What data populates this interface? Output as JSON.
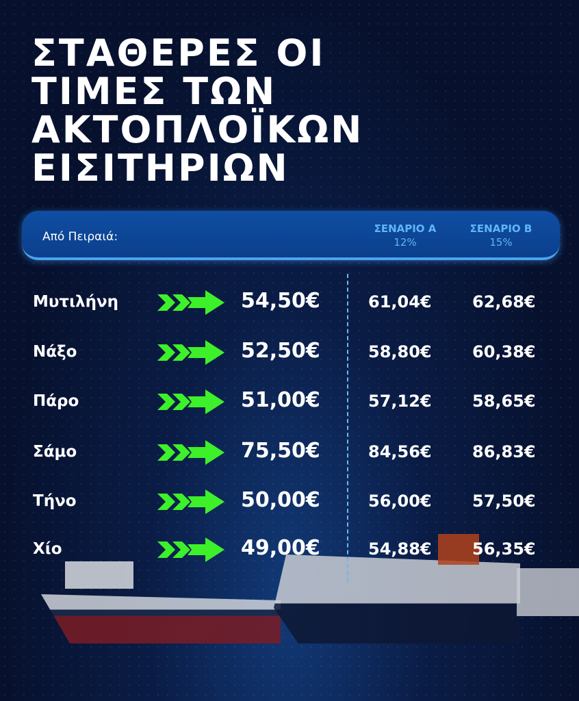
{
  "title": {
    "lines": [
      "ΣΤΑΘΕΡΕΣ ΟΙ",
      "ΤΙΜΕΣ ΤΩΝ",
      "ΑΚΤΟΠΛΟΪΚΩΝ",
      "ΕΙΣΙΤΗΡΙΩΝ"
    ]
  },
  "header": {
    "from_label": "Από Πειραιά:",
    "scenario_a": {
      "label": "ΣΕΝΑΡΙΟ Α",
      "percent": "12%"
    },
    "scenario_b": {
      "label": "ΣΕΝΑΡΙΟ Β",
      "percent": "15%"
    }
  },
  "rows": [
    {
      "destination": "Μυτιλήνη",
      "current": "54,50€",
      "a": "61,04€",
      "b": "62,68€"
    },
    {
      "destination": "Νάξο",
      "current": "52,50€",
      "a": "58,80€",
      "b": "60,38€"
    },
    {
      "destination": "Πάρο",
      "current": "51,00€",
      "a": "57,12€",
      "b": "58,65€"
    },
    {
      "destination": "Σάμο",
      "current": "75,50€",
      "a": "84,56€",
      "b": "86,83€"
    },
    {
      "destination": "Τήνο",
      "current": "50,00€",
      "a": "56,00€",
      "b": "57,50€"
    },
    {
      "destination": "Χίο",
      "current": "49,00€",
      "a": "54,88€",
      "b": "56,35€"
    }
  ],
  "colors": {
    "background": "#07112e",
    "header": "#0f4ea3",
    "accent_blue": "#5fb6f5",
    "arrow_green": "#3ef02a"
  },
  "icons": {
    "row_arrow": "double-chevron-arrow-icon"
  }
}
